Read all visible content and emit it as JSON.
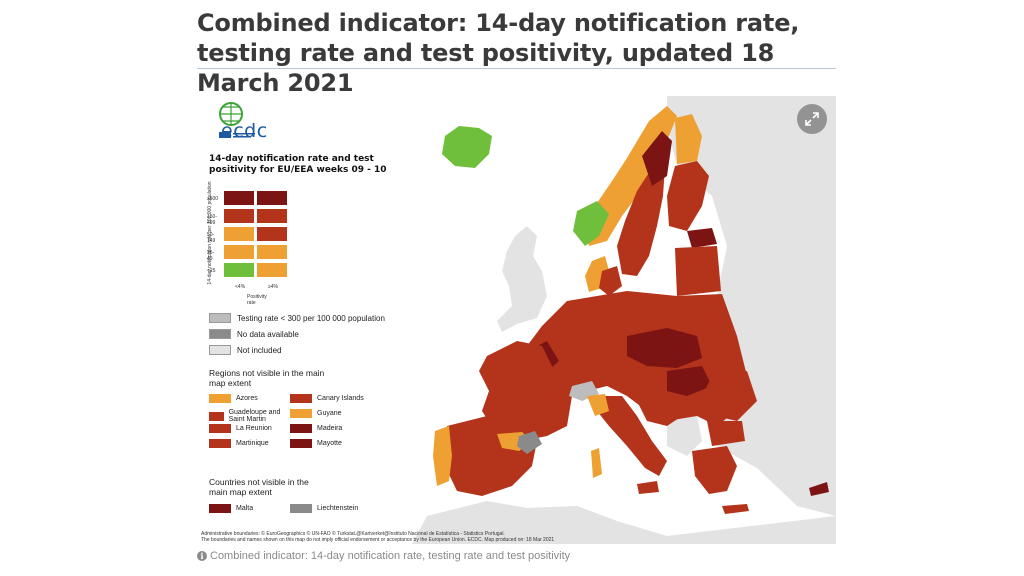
{
  "article": {
    "title": "Combined indicator: 14-day notification rate, testing rate and test positivity, updated 18 March 2021",
    "caption": "Combined indicator: 14-day notification rate, testing rate and test positivity"
  },
  "map": {
    "logo_text": "ecdc",
    "heading": "14-day notification rate and test positivity for EU/EEA weeks 09 - 10",
    "y_axis_label": "14-day notification rate per 100 000 population",
    "y_bands": [
      "≥500",
      "150-499",
      "50-149",
      "25-49",
      "<25"
    ],
    "x_bands": [
      "<4%",
      "≥4%"
    ],
    "x_axis_label": "Positivity rate",
    "matrix_colors": [
      [
        "#7b1412",
        "#7b1412"
      ],
      [
        "#b3341b",
        "#b3341b"
      ],
      [
        "#eea132",
        "#b3341b"
      ],
      [
        "#eea132",
        "#eea132"
      ],
      [
        "#6fbf3d",
        "#eea132"
      ]
    ],
    "keys": [
      {
        "label": "Testing rate < 300 per 100 000 population",
        "color": "#bdbdbd"
      },
      {
        "label": "No data available",
        "color": "#8a8a8a"
      },
      {
        "label": "Not included",
        "color": "#e3e3e3"
      }
    ],
    "regions_title": "Regions not visible in the main map extent",
    "regions": [
      {
        "label": "Azores",
        "color": "#eea132"
      },
      {
        "label": "Canary Islands",
        "color": "#b3341b"
      },
      {
        "label": "Guadeloupe and Saint Martin",
        "color": "#b3341b"
      },
      {
        "label": "Guyane",
        "color": "#eea132"
      },
      {
        "label": "La Reunion",
        "color": "#b3341b"
      },
      {
        "label": "Madeira",
        "color": "#7b1412"
      },
      {
        "label": "Martinique",
        "color": "#b3341b"
      },
      {
        "label": "Mayotte",
        "color": "#7b1412"
      }
    ],
    "countries_title": "Countries not visible in the main map extent",
    "countries": [
      {
        "label": "Malta",
        "color": "#7b1412"
      },
      {
        "label": "Liechtenstein",
        "color": "#8a8a8a"
      }
    ],
    "footer_line1": "Administrative boundaries: © EuroGeographics © UN-FAO © Turkstat.@Kartverket@Instituto Nacional de Estatística - Statistics Portugal.",
    "footer_line2": "The boundaries and names shown on this map do not imply official endorsement or acceptance by the European Union. ECDC. Map produced on: 18 Mar 2021",
    "expand_icon": "expand-icon",
    "colors": {
      "dark_red": "#7b1412",
      "red": "#b3341b",
      "orange": "#eea132",
      "green": "#6fbf3d",
      "not_included": "#e3e3e3",
      "sea": "#ffffff"
    }
  }
}
